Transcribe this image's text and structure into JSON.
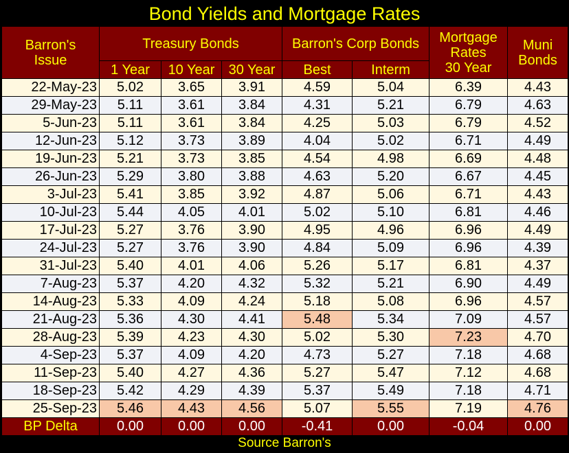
{
  "title": "Bond Yields and Mortgage Rates",
  "source": "Source Barron's",
  "headers": {
    "issue": [
      "Barron's",
      "Issue"
    ],
    "treasury": "Treasury Bonds",
    "corp": "Barron's Corp Bonds",
    "mortgage": [
      "Mortgage",
      "Rates",
      "30 Year"
    ],
    "muni": [
      "Muni",
      "Bonds"
    ],
    "sub": [
      "1 Year",
      "10 Year",
      "30 Year",
      "Best",
      "Interm"
    ]
  },
  "highlight_color": "#F8C8A8",
  "rows": [
    {
      "date": "22-May-23",
      "cells": [
        "5.02",
        "3.65",
        "3.91",
        "4.59",
        "5.04",
        "6.39",
        "4.43"
      ],
      "hl": []
    },
    {
      "date": "29-May-23",
      "cells": [
        "5.11",
        "3.61",
        "3.84",
        "4.31",
        "5.21",
        "6.79",
        "4.63"
      ],
      "hl": []
    },
    {
      "date": "5-Jun-23",
      "cells": [
        "5.11",
        "3.61",
        "3.84",
        "4.25",
        "5.03",
        "6.79",
        "4.52"
      ],
      "hl": []
    },
    {
      "date": "12-Jun-23",
      "cells": [
        "5.12",
        "3.73",
        "3.89",
        "4.04",
        "5.02",
        "6.71",
        "4.49"
      ],
      "hl": []
    },
    {
      "date": "19-Jun-23",
      "cells": [
        "5.21",
        "3.73",
        "3.85",
        "4.54",
        "4.98",
        "6.69",
        "4.48"
      ],
      "hl": []
    },
    {
      "date": "26-Jun-23",
      "cells": [
        "5.29",
        "3.80",
        "3.88",
        "4.63",
        "5.20",
        "6.67",
        "4.45"
      ],
      "hl": []
    },
    {
      "date": "3-Jul-23",
      "cells": [
        "5.41",
        "3.85",
        "3.92",
        "4.87",
        "5.06",
        "6.71",
        "4.43"
      ],
      "hl": []
    },
    {
      "date": "10-Jul-23",
      "cells": [
        "5.44",
        "4.05",
        "4.01",
        "5.02",
        "5.10",
        "6.81",
        "4.46"
      ],
      "hl": []
    },
    {
      "date": "17-Jul-23",
      "cells": [
        "5.27",
        "3.76",
        "3.90",
        "4.95",
        "4.96",
        "6.96",
        "4.49"
      ],
      "hl": []
    },
    {
      "date": "24-Jul-23",
      "cells": [
        "5.27",
        "3.76",
        "3.90",
        "4.84",
        "5.09",
        "6.96",
        "4.39"
      ],
      "hl": []
    },
    {
      "date": "31-Jul-23",
      "cells": [
        "5.40",
        "4.01",
        "4.06",
        "5.26",
        "5.17",
        "6.81",
        "4.37"
      ],
      "hl": []
    },
    {
      "date": "7-Aug-23",
      "cells": [
        "5.37",
        "4.20",
        "4.32",
        "5.32",
        "5.21",
        "6.90",
        "4.49"
      ],
      "hl": []
    },
    {
      "date": "14-Aug-23",
      "cells": [
        "5.33",
        "4.09",
        "4.24",
        "5.18",
        "5.08",
        "6.96",
        "4.57"
      ],
      "hl": []
    },
    {
      "date": "21-Aug-23",
      "cells": [
        "5.36",
        "4.30",
        "4.41",
        "5.48",
        "5.34",
        "7.09",
        "4.57"
      ],
      "hl": [
        3
      ]
    },
    {
      "date": "28-Aug-23",
      "cells": [
        "5.39",
        "4.23",
        "4.30",
        "5.02",
        "5.30",
        "7.23",
        "4.70"
      ],
      "hl": [
        5
      ]
    },
    {
      "date": "4-Sep-23",
      "cells": [
        "5.37",
        "4.09",
        "4.20",
        "4.73",
        "5.27",
        "7.18",
        "4.68"
      ],
      "hl": []
    },
    {
      "date": "11-Sep-23",
      "cells": [
        "5.40",
        "4.27",
        "4.36",
        "5.27",
        "5.47",
        "7.12",
        "4.68"
      ],
      "hl": []
    },
    {
      "date": "18-Sep-23",
      "cells": [
        "5.42",
        "4.29",
        "4.39",
        "5.37",
        "5.49",
        "7.18",
        "4.71"
      ],
      "hl": []
    },
    {
      "date": "25-Sep-23",
      "cells": [
        "5.46",
        "4.43",
        "4.56",
        "5.07",
        "5.55",
        "7.19",
        "4.76"
      ],
      "hl": [
        0,
        1,
        2,
        4,
        6
      ]
    }
  ],
  "delta": {
    "label": "BP Delta",
    "cells": [
      "0.00",
      "0.00",
      "0.00",
      "-0.41",
      "0.00",
      "-0.04",
      "0.00"
    ]
  }
}
